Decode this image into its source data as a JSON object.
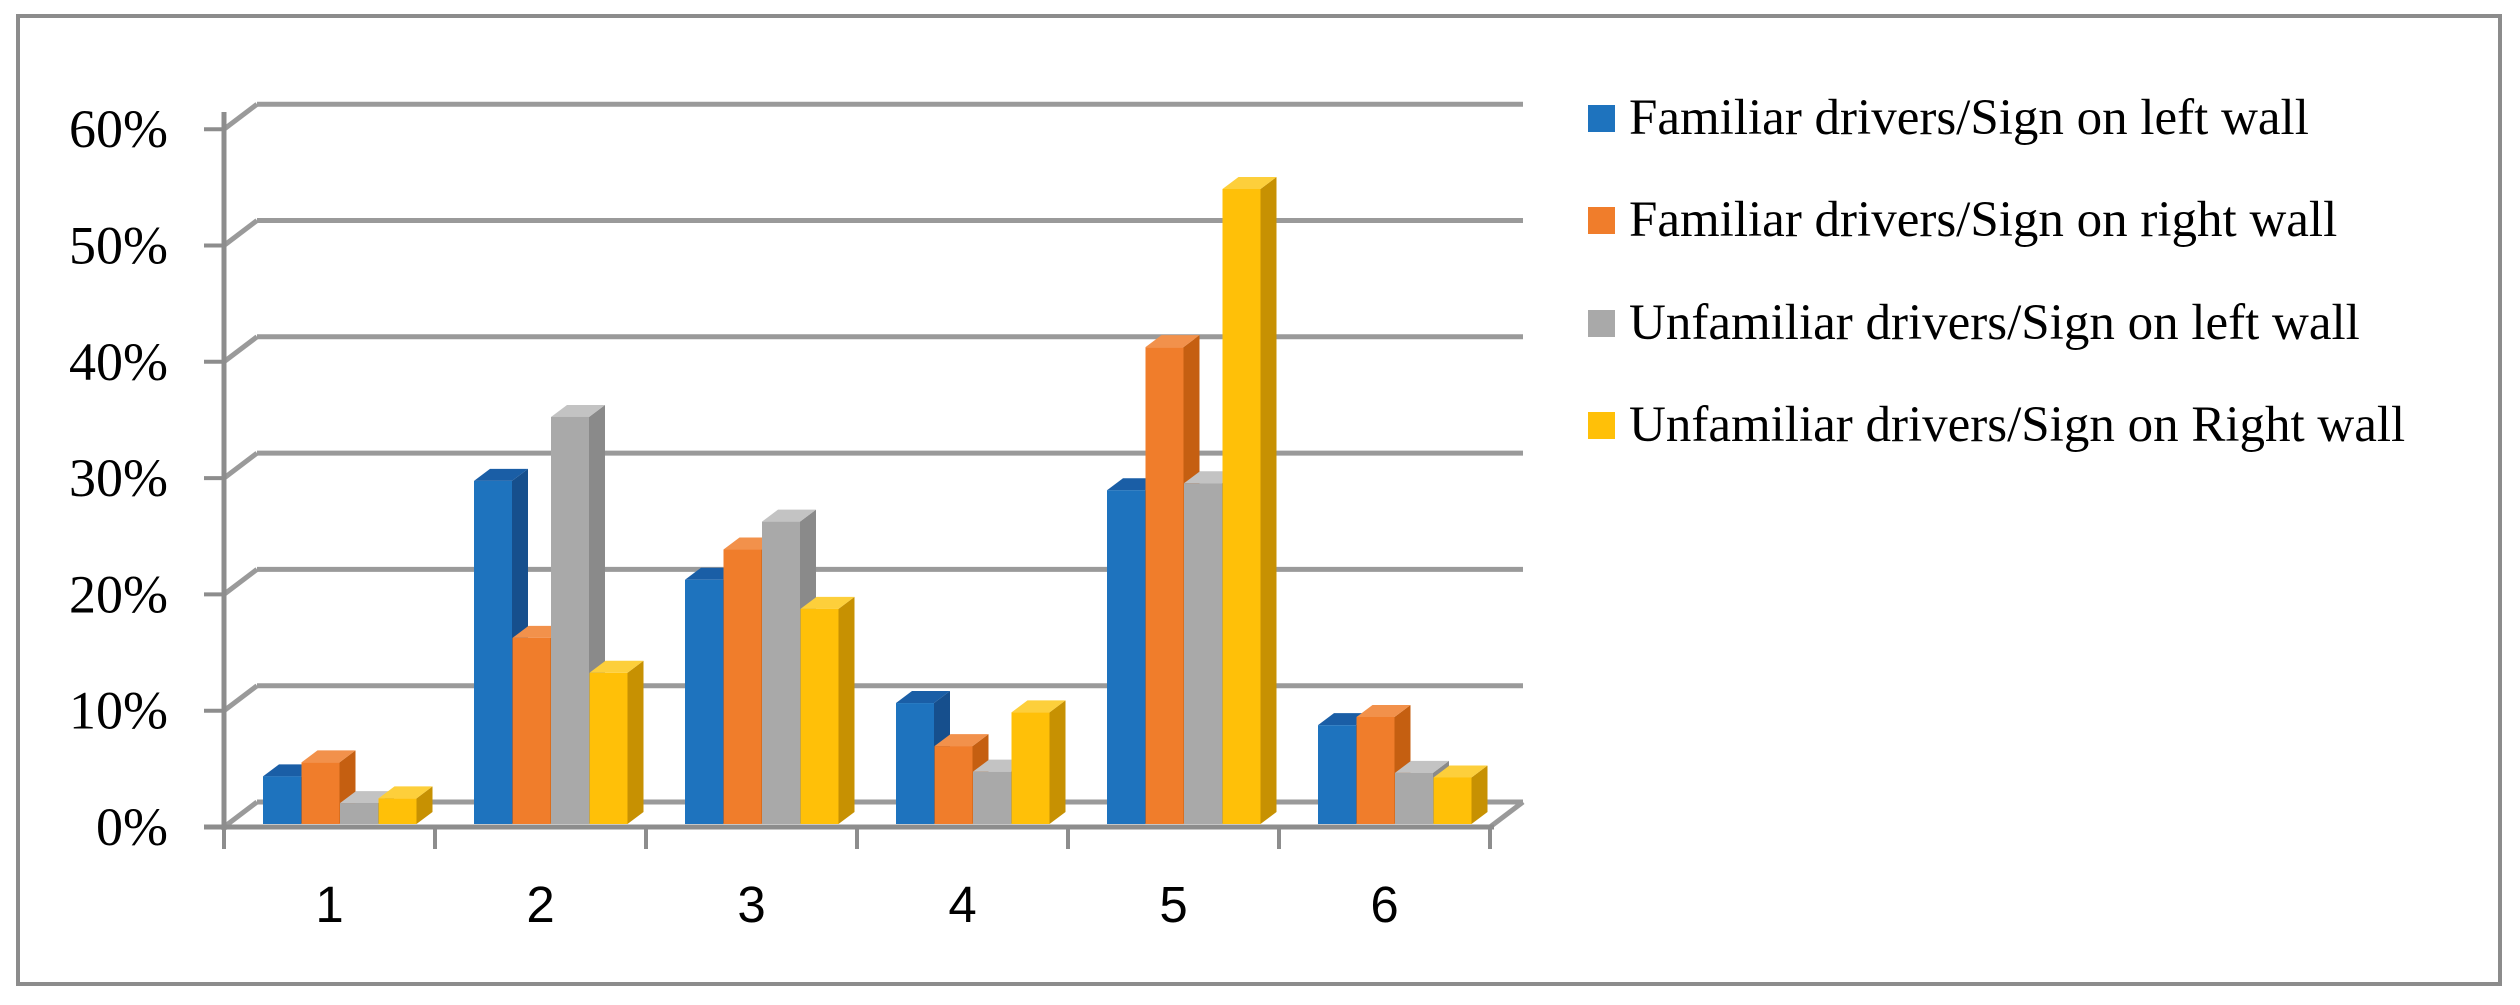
{
  "window": {
    "background_color": "#ffffff",
    "border_color": "#8c8c8c"
  },
  "chart_data": {
    "type": "bar",
    "style": "3d-clustered-column",
    "title": "",
    "xlabel": "",
    "ylabel": "",
    "categories": [
      "1",
      "2",
      "3",
      "4",
      "5",
      "6"
    ],
    "series": [
      {
        "name": "Familiar drivers/Sign on left wall",
        "color": "#1e73be",
        "color_top": "#1a5ea6",
        "color_side": "#164f8d",
        "values": [
          4.1,
          29.5,
          21,
          10.4,
          28.7,
          8.5
        ]
      },
      {
        "name": "Familiar drivers/Sign on right wall",
        "color": "#f07d2b",
        "color_top": "#f2914b",
        "color_side": "#c55f11",
        "values": [
          5.3,
          16,
          23.6,
          6.7,
          41,
          9.2
        ]
      },
      {
        "name": "Unfamiliar drivers/Sign on left wall",
        "color": "#a9a9a9",
        "color_top": "#c3c3c3",
        "color_side": "#8a8a8a",
        "values": [
          1.8,
          35,
          26,
          4.5,
          29.3,
          4.4
        ]
      },
      {
        "name": "Unfamiliar drivers/Sign on Right wall",
        "color": "#ffc008",
        "color_top": "#fdcf3b",
        "color_side": "#c79102",
        "values": [
          2.2,
          13,
          18.5,
          9.6,
          54.6,
          4
        ]
      }
    ],
    "y_ticks": [
      "0%",
      "10%",
      "20%",
      "30%",
      "40%",
      "50%",
      "60%"
    ],
    "ylim": [
      0,
      60
    ],
    "y_unit": "percent",
    "grid": true,
    "legend_position": "right",
    "gridline_color": "#9a9a9a",
    "axis_color": "#8d8d8d",
    "tick_label_color": "#000000"
  }
}
